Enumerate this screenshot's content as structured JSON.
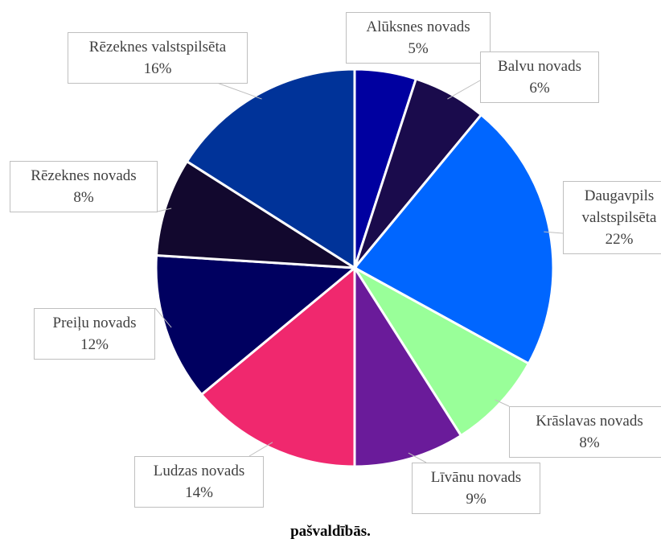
{
  "chart_data": {
    "type": "pie",
    "categories": [
      "Alūksnes novads",
      "Balvu novads",
      "Daugavpils valstspilsēta",
      "Krāslavas novads",
      "Līvānu novads",
      "Ludzas novads",
      "Preiļu novads",
      "Rēzeknes novads",
      "Rēzeknes valstspilsēta"
    ],
    "values": [
      5,
      6,
      22,
      8,
      9,
      14,
      12,
      8,
      16
    ],
    "value_labels": [
      "5%",
      "6%",
      "22%",
      "8%",
      "9%",
      "14%",
      "12%",
      "8%",
      "16%"
    ],
    "colors": [
      "#0000a0",
      "#1a0b4c",
      "#0066ff",
      "#99ff99",
      "#6a1b9a",
      "#f0286e",
      "#000060",
      "#12082e",
      "#003399"
    ],
    "caption": "pašvaldībās."
  }
}
